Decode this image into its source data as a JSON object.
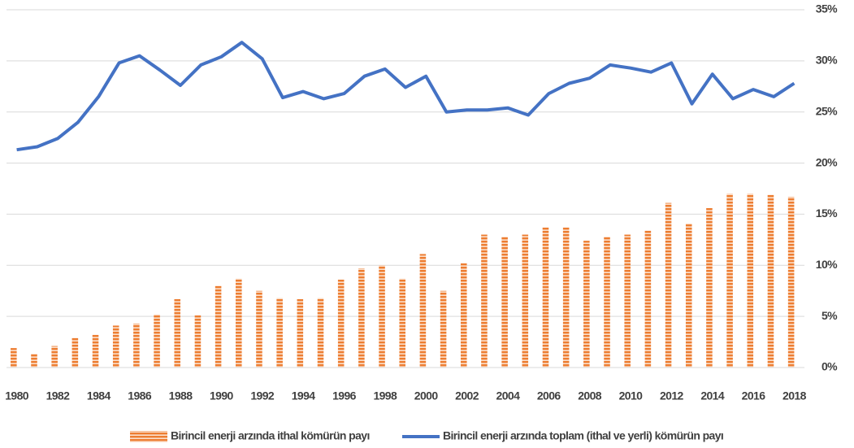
{
  "chart_data": {
    "type": "bar",
    "categories": [
      "1980",
      null,
      "1982",
      null,
      "1984",
      null,
      "1986",
      null,
      "1988",
      null,
      "1990",
      null,
      "1992",
      null,
      "1994",
      null,
      "1996",
      null,
      "1998",
      null,
      "2000",
      null,
      "2002",
      null,
      "2004",
      null,
      "2006",
      null,
      "2008",
      null,
      "2010",
      null,
      "2012",
      null,
      "2014",
      null,
      "2016",
      null,
      "2018"
    ],
    "series": [
      {
        "name": "Birincil enerji arzında ithal kömürün payı",
        "type": "bar",
        "color": "#ed7d31",
        "values": [
          1.9,
          1.35,
          2.1,
          2.9,
          3.2,
          4.1,
          4.3,
          5.2,
          6.7,
          5.1,
          8.0,
          8.7,
          7.5,
          6.8,
          6.7,
          6.8,
          8.6,
          9.7,
          10.0,
          8.7,
          11.1,
          7.5,
          10.2,
          13.0,
          12.8,
          13.0,
          13.7,
          13.7,
          12.4,
          12.8,
          13.0,
          13.4,
          16.1,
          14.1,
          15.6,
          17.0,
          17.0,
          16.9,
          16.7
        ]
      },
      {
        "name": "Birincil enerji arzında toplam (ithal ve yerli) kömürün payı",
        "type": "line",
        "color": "#4472c4",
        "values": [
          21.3,
          21.6,
          22.4,
          24.0,
          26.5,
          29.8,
          30.5,
          29.1,
          27.6,
          29.6,
          30.4,
          31.8,
          30.2,
          26.4,
          27.0,
          26.3,
          26.8,
          28.5,
          29.2,
          27.4,
          28.5,
          25.0,
          25.2,
          25.2,
          25.4,
          24.7,
          26.8,
          27.8,
          28.3,
          29.6,
          29.3,
          28.9,
          29.8,
          25.8,
          28.7,
          26.3,
          27.2,
          26.5,
          27.8
        ]
      }
    ],
    "ylim": [
      0,
      35
    ],
    "yticks": [
      {
        "value": 0,
        "label": "0%"
      },
      {
        "value": 5,
        "label": "5%"
      },
      {
        "value": 10,
        "label": "10%"
      },
      {
        "value": 15,
        "label": "15%"
      },
      {
        "value": 20,
        "label": "20%"
      },
      {
        "value": 25,
        "label": "25%"
      },
      {
        "value": 30,
        "label": "30%"
      },
      {
        "value": 35,
        "label": "35%"
      }
    ],
    "grid": true,
    "legend": "bottom"
  }
}
